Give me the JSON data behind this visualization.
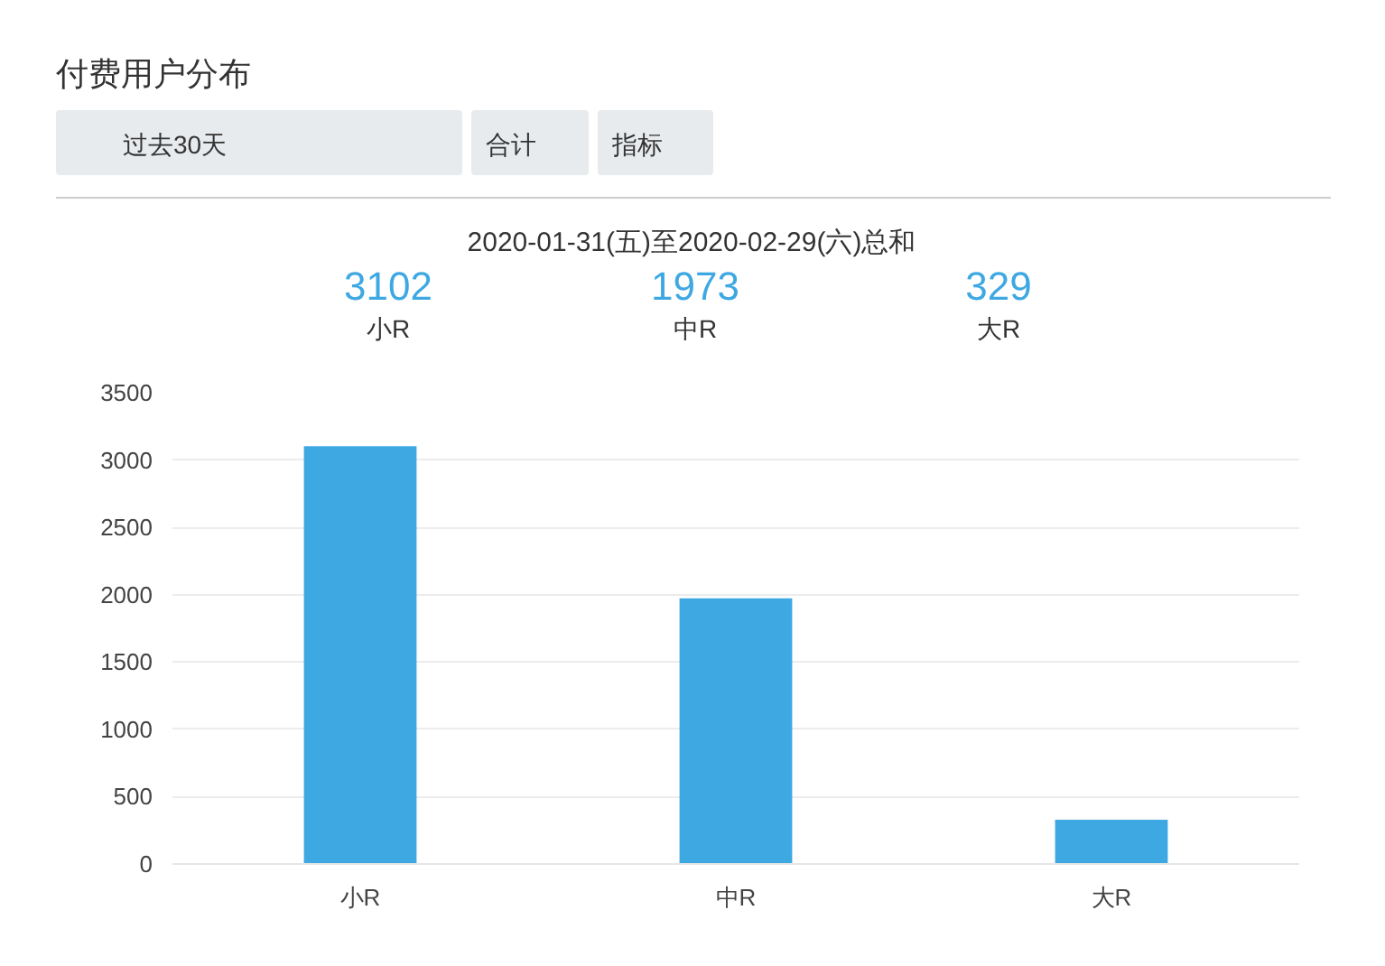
{
  "chart_data": {
    "type": "bar",
    "title": "付费用户分布",
    "subtitle": "2020-01-31(五)至2020-02-29(六)总和",
    "annotations": [
      "过去30天",
      "合计",
      "指标",
      "3102",
      "小R",
      "1973",
      "中R",
      "329",
      "大R"
    ],
    "categories": [
      "小R",
      "中R",
      "大R"
    ],
    "values": [
      3102,
      1973,
      329
    ],
    "color": "#3ea8e2",
    "ylim": [
      0,
      3500
    ],
    "yticks": [
      0,
      500,
      1000,
      1500,
      2000,
      2500,
      3000,
      3500
    ],
    "grid": "y"
  }
}
